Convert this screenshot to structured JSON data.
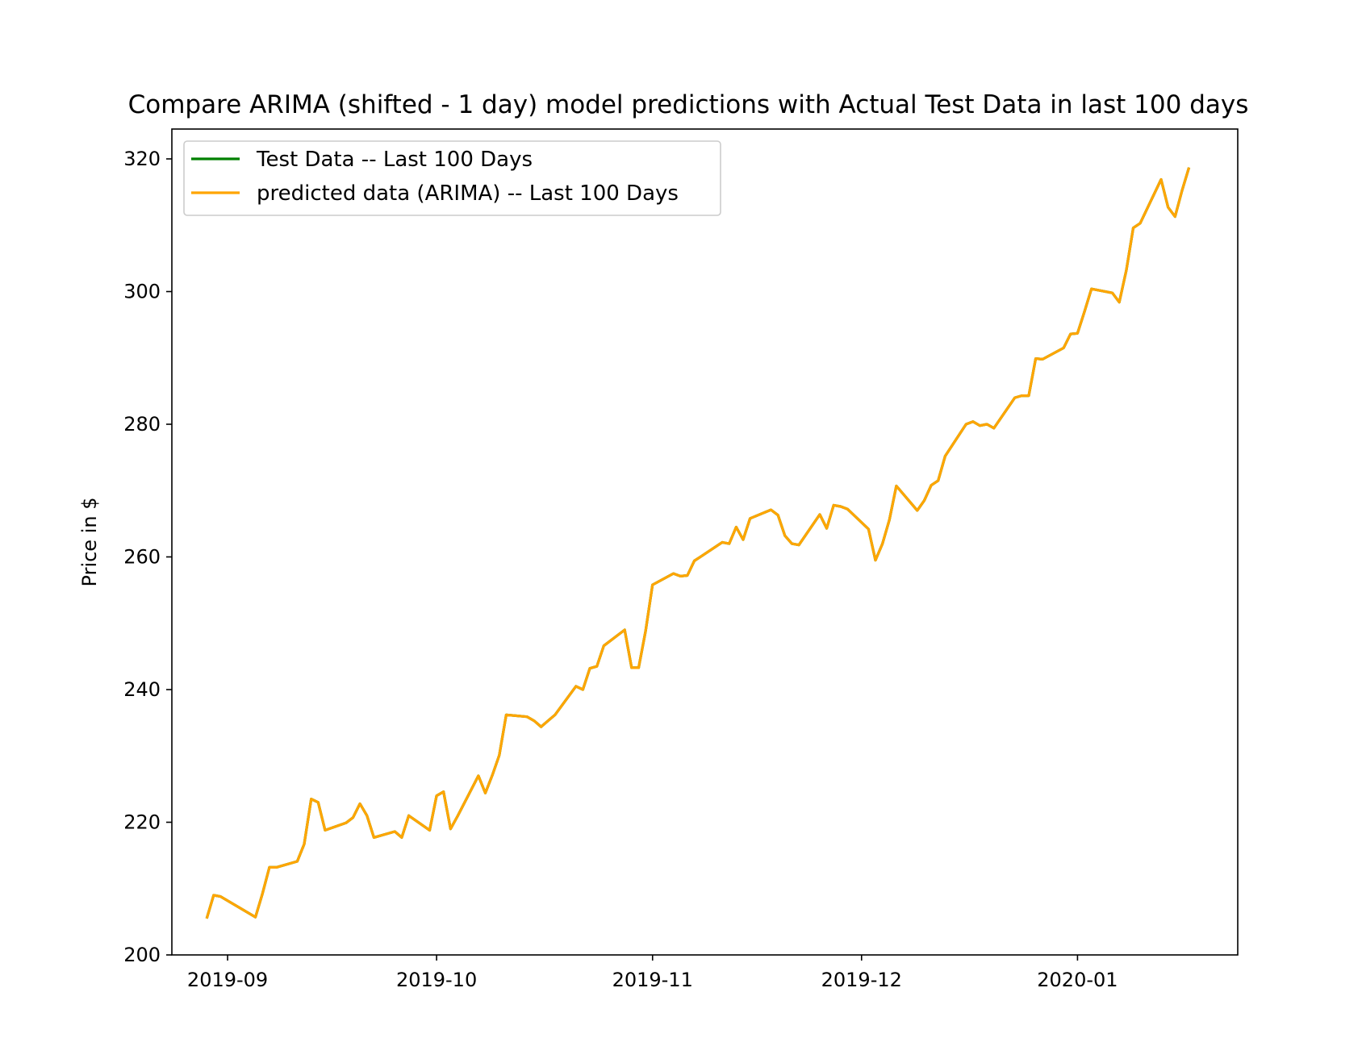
{
  "chart_data": {
    "type": "line",
    "title": "Compare ARIMA (shifted - 1 day) model predictions with Actual Test Data in last 100 days",
    "xlabel": "",
    "ylabel": "Price in $",
    "x_axis": "date",
    "xlim": [
      "2019-08-24",
      "2020-01-24"
    ],
    "ylim": [
      200,
      324.5
    ],
    "x_ticks": [
      "2019-09",
      "2019-10",
      "2019-11",
      "2019-12",
      "2020-01"
    ],
    "x_tick_dates": [
      "2019-09-01",
      "2019-10-01",
      "2019-11-01",
      "2019-12-01",
      "2020-01-01"
    ],
    "y_ticks": [
      200,
      220,
      240,
      260,
      280,
      300,
      320
    ],
    "grid": false,
    "legend_position": "upper-left",
    "colors": {
      "test": "#008000",
      "predicted": "#FFA500"
    },
    "x": [
      "2019-08-29",
      "2019-08-30",
      "2019-08-31",
      "2019-09-05",
      "2019-09-06",
      "2019-09-07",
      "2019-09-08",
      "2019-09-11",
      "2019-09-12",
      "2019-09-13",
      "2019-09-14",
      "2019-09-15",
      "2019-09-18",
      "2019-09-19",
      "2019-09-20",
      "2019-09-21",
      "2019-09-22",
      "2019-09-25",
      "2019-09-26",
      "2019-09-27",
      "2019-09-30",
      "2019-10-01",
      "2019-10-02",
      "2019-10-03",
      "2019-10-04",
      "2019-10-07",
      "2019-10-08",
      "2019-10-09",
      "2019-10-10",
      "2019-10-11",
      "2019-10-14",
      "2019-10-15",
      "2019-10-16",
      "2019-10-17",
      "2019-10-18",
      "2019-10-21",
      "2019-10-22",
      "2019-10-23",
      "2019-10-24",
      "2019-10-25",
      "2019-10-28",
      "2019-10-29",
      "2019-10-30",
      "2019-10-31",
      "2019-11-01",
      "2019-11-04",
      "2019-11-05",
      "2019-11-06",
      "2019-11-07",
      "2019-11-08",
      "2019-11-11",
      "2019-11-12",
      "2019-11-13",
      "2019-11-14",
      "2019-11-15",
      "2019-11-18",
      "2019-11-19",
      "2019-11-20",
      "2019-11-21",
      "2019-11-22",
      "2019-11-25",
      "2019-11-26",
      "2019-11-27",
      "2019-11-28",
      "2019-11-29",
      "2019-12-02",
      "2019-12-03",
      "2019-12-04",
      "2019-12-05",
      "2019-12-06",
      "2019-12-09",
      "2019-12-10",
      "2019-12-11",
      "2019-12-12",
      "2019-12-13",
      "2019-12-16",
      "2019-12-17",
      "2019-12-18",
      "2019-12-19",
      "2019-12-20",
      "2019-12-23",
      "2019-12-24",
      "2019-12-25",
      "2019-12-26",
      "2019-12-27",
      "2019-12-30",
      "2019-12-31",
      "2020-01-01",
      "2020-01-02",
      "2020-01-03",
      "2020-01-06",
      "2020-01-07",
      "2020-01-08",
      "2020-01-09",
      "2020-01-10",
      "2020-01-13",
      "2020-01-14",
      "2020-01-15",
      "2020-01-16",
      "2020-01-17"
    ],
    "series": [
      {
        "name": "Test Data -- Last 100 Days",
        "values": [
          205.5,
          209.0,
          208.8,
          205.7,
          209.2,
          213.2,
          213.2,
          214.1,
          216.7,
          223.5,
          223.0,
          218.8,
          219.9,
          220.7,
          222.8,
          221.0,
          217.7,
          218.6,
          217.7,
          221.0,
          218.8,
          224.0,
          224.6,
          219.0,
          220.9,
          227.0,
          224.4,
          227.1,
          230.1,
          236.2,
          235.9,
          235.3,
          234.4,
          235.3,
          236.2,
          240.5,
          240.0,
          243.2,
          243.5,
          246.6,
          249.0,
          243.3,
          243.3,
          248.8,
          255.8,
          257.5,
          257.1,
          257.2,
          259.4,
          260.1,
          262.2,
          262.0,
          264.5,
          262.6,
          265.8,
          267.1,
          266.3,
          263.2,
          262.0,
          261.8,
          266.4,
          264.3,
          267.8,
          267.6,
          267.2,
          264.2,
          259.5,
          262.0,
          265.6,
          270.7,
          267.0,
          268.5,
          270.8,
          271.5,
          275.2,
          280.0,
          280.4,
          279.8,
          280.0,
          279.4,
          284.0,
          284.3,
          284.3,
          289.9,
          289.8,
          291.5,
          293.6,
          293.7,
          297.0,
          300.4,
          299.8,
          298.4,
          303.2,
          309.6,
          310.3,
          316.9,
          312.7,
          311.3,
          315.2,
          318.7
        ]
      },
      {
        "name": "predicted data (ARIMA) -- Last 100 Days",
        "values": [
          205.5,
          209.0,
          208.8,
          205.7,
          209.2,
          213.2,
          213.2,
          214.1,
          216.7,
          223.5,
          223.0,
          218.8,
          219.9,
          220.7,
          222.8,
          221.0,
          217.7,
          218.6,
          217.7,
          221.0,
          218.8,
          224.0,
          224.6,
          219.0,
          220.9,
          227.0,
          224.4,
          227.1,
          230.1,
          236.2,
          235.9,
          235.3,
          234.4,
          235.3,
          236.2,
          240.5,
          240.0,
          243.2,
          243.5,
          246.6,
          249.0,
          243.3,
          243.3,
          248.8,
          255.8,
          257.5,
          257.1,
          257.2,
          259.4,
          260.1,
          262.2,
          262.0,
          264.5,
          262.6,
          265.8,
          267.1,
          266.3,
          263.2,
          262.0,
          261.8,
          266.4,
          264.3,
          267.8,
          267.6,
          267.2,
          264.2,
          259.5,
          262.0,
          265.6,
          270.7,
          267.0,
          268.5,
          270.8,
          271.5,
          275.2,
          280.0,
          280.4,
          279.8,
          280.0,
          279.4,
          284.0,
          284.3,
          284.3,
          289.9,
          289.8,
          291.5,
          293.6,
          293.7,
          297.0,
          300.4,
          299.8,
          298.4,
          303.2,
          309.6,
          310.3,
          316.9,
          312.7,
          311.3,
          315.2,
          318.7
        ]
      }
    ]
  }
}
